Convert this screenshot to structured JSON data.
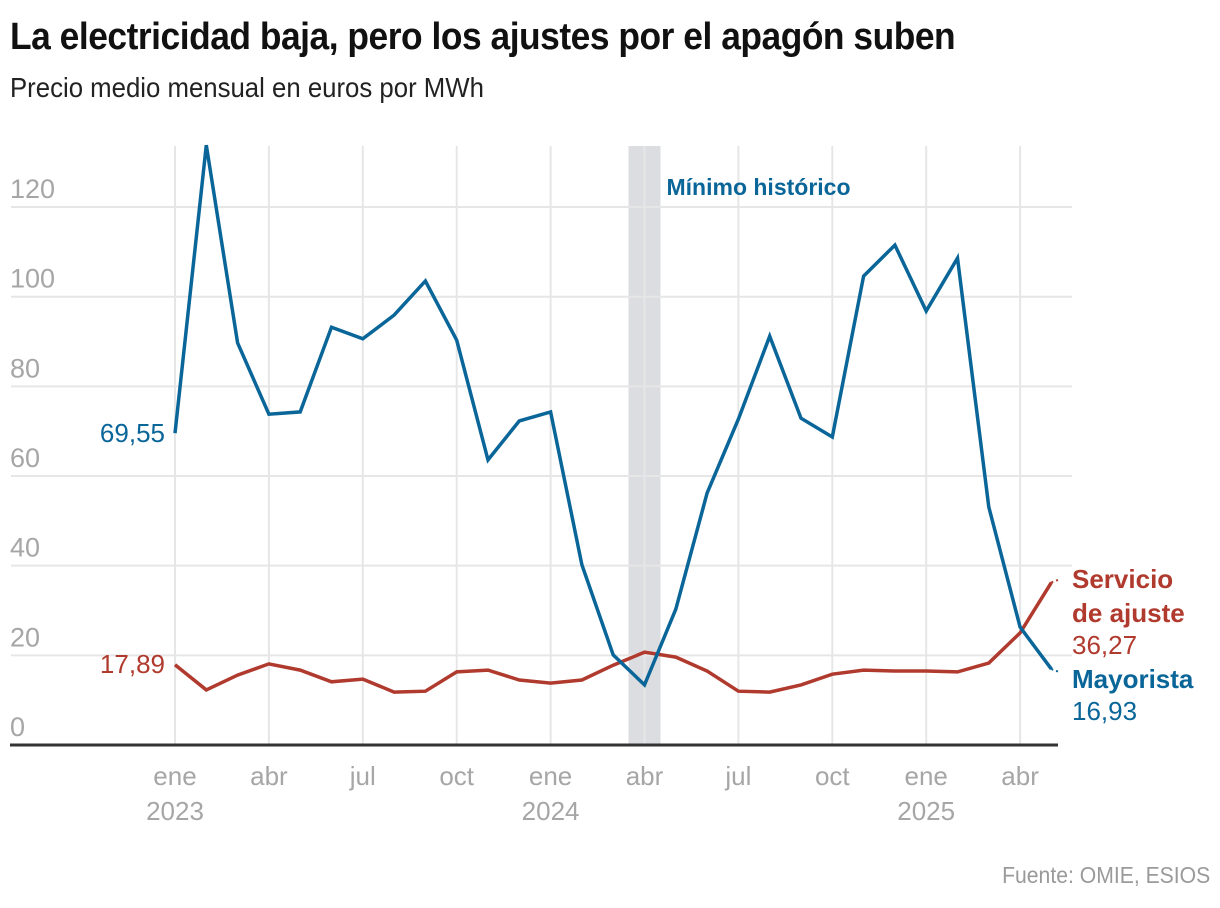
{
  "header": {
    "title": "La electricidad baja, pero los ajustes por el apagón suben",
    "subtitle": "Precio medio mensual en euros por MWh"
  },
  "footer": {
    "source": "Fuente: OMIE, ESIOS"
  },
  "colors": {
    "mayorista": "#0a6699",
    "ajuste": "#b03a2e",
    "grid": "#e6e6e6",
    "highlight": "#dcdde0",
    "axis": "#333333",
    "tick": "#a6a6a6"
  },
  "chart_data": {
    "type": "line",
    "title": "La electricidad baja, pero los ajustes por el apagón suben",
    "subtitle": "Precio medio mensual en euros por MWh",
    "xlabel": "",
    "ylabel": "",
    "ylim": [
      0,
      135
    ],
    "yticks": [
      0,
      20,
      40,
      60,
      80,
      100,
      120
    ],
    "ytick_labels": [
      "0",
      "20",
      "40",
      "60",
      "80",
      "100",
      "120"
    ],
    "grid": true,
    "x": [
      "2023-01",
      "2023-02",
      "2023-03",
      "2023-04",
      "2023-05",
      "2023-06",
      "2023-07",
      "2023-08",
      "2023-09",
      "2023-10",
      "2023-11",
      "2023-12",
      "2024-01",
      "2024-02",
      "2024-03",
      "2024-04",
      "2024-05",
      "2024-06",
      "2024-07",
      "2024-08",
      "2024-09",
      "2024-10",
      "2024-11",
      "2024-12",
      "2025-01",
      "2025-02",
      "2025-03",
      "2025-04",
      "2025-05"
    ],
    "xticks": [
      {
        "index": 0,
        "month": "ene",
        "year": "2023"
      },
      {
        "index": 3,
        "month": "abr",
        "year": ""
      },
      {
        "index": 6,
        "month": "jul",
        "year": ""
      },
      {
        "index": 9,
        "month": "oct",
        "year": ""
      },
      {
        "index": 12,
        "month": "ene",
        "year": "2024"
      },
      {
        "index": 15,
        "month": "abr",
        "year": ""
      },
      {
        "index": 18,
        "month": "jul",
        "year": ""
      },
      {
        "index": 21,
        "month": "oct",
        "year": ""
      },
      {
        "index": 24,
        "month": "ene",
        "year": "2025"
      },
      {
        "index": 27,
        "month": "abr",
        "year": ""
      }
    ],
    "series": [
      {
        "name": "Mayorista",
        "color": "#0a6699",
        "values": [
          69.55,
          133.8,
          89.7,
          73.8,
          74.3,
          93.2,
          90.6,
          95.9,
          103.5,
          90.3,
          63.6,
          72.3,
          74.3,
          40.2,
          20.1,
          13.4,
          30.3,
          56.2,
          72.7,
          91.2,
          72.9,
          68.7,
          104.6,
          111.5,
          96.8,
          108.6,
          53.1,
          26.3,
          16.93
        ],
        "start_label": "69,55",
        "end_label": "16,93"
      },
      {
        "name": "Servicio de ajuste",
        "name_lines": [
          "Servicio",
          "de ajuste"
        ],
        "color": "#b03a2e",
        "values": [
          17.89,
          12.3,
          15.6,
          18.1,
          16.7,
          14.1,
          14.7,
          11.8,
          12.0,
          16.3,
          16.7,
          14.5,
          13.8,
          14.5,
          17.8,
          20.7,
          19.6,
          16.5,
          12.0,
          11.8,
          13.4,
          15.8,
          16.7,
          16.5,
          16.5,
          16.3,
          18.3,
          25.0,
          36.27
        ],
        "start_label": "17,89",
        "end_label": "36,27"
      }
    ],
    "annotations": [
      {
        "type": "highlight-band",
        "index": 15,
        "text": "Mínimo histórico",
        "color": "#0a6699"
      }
    ],
    "legend": "direct-labels-right"
  }
}
